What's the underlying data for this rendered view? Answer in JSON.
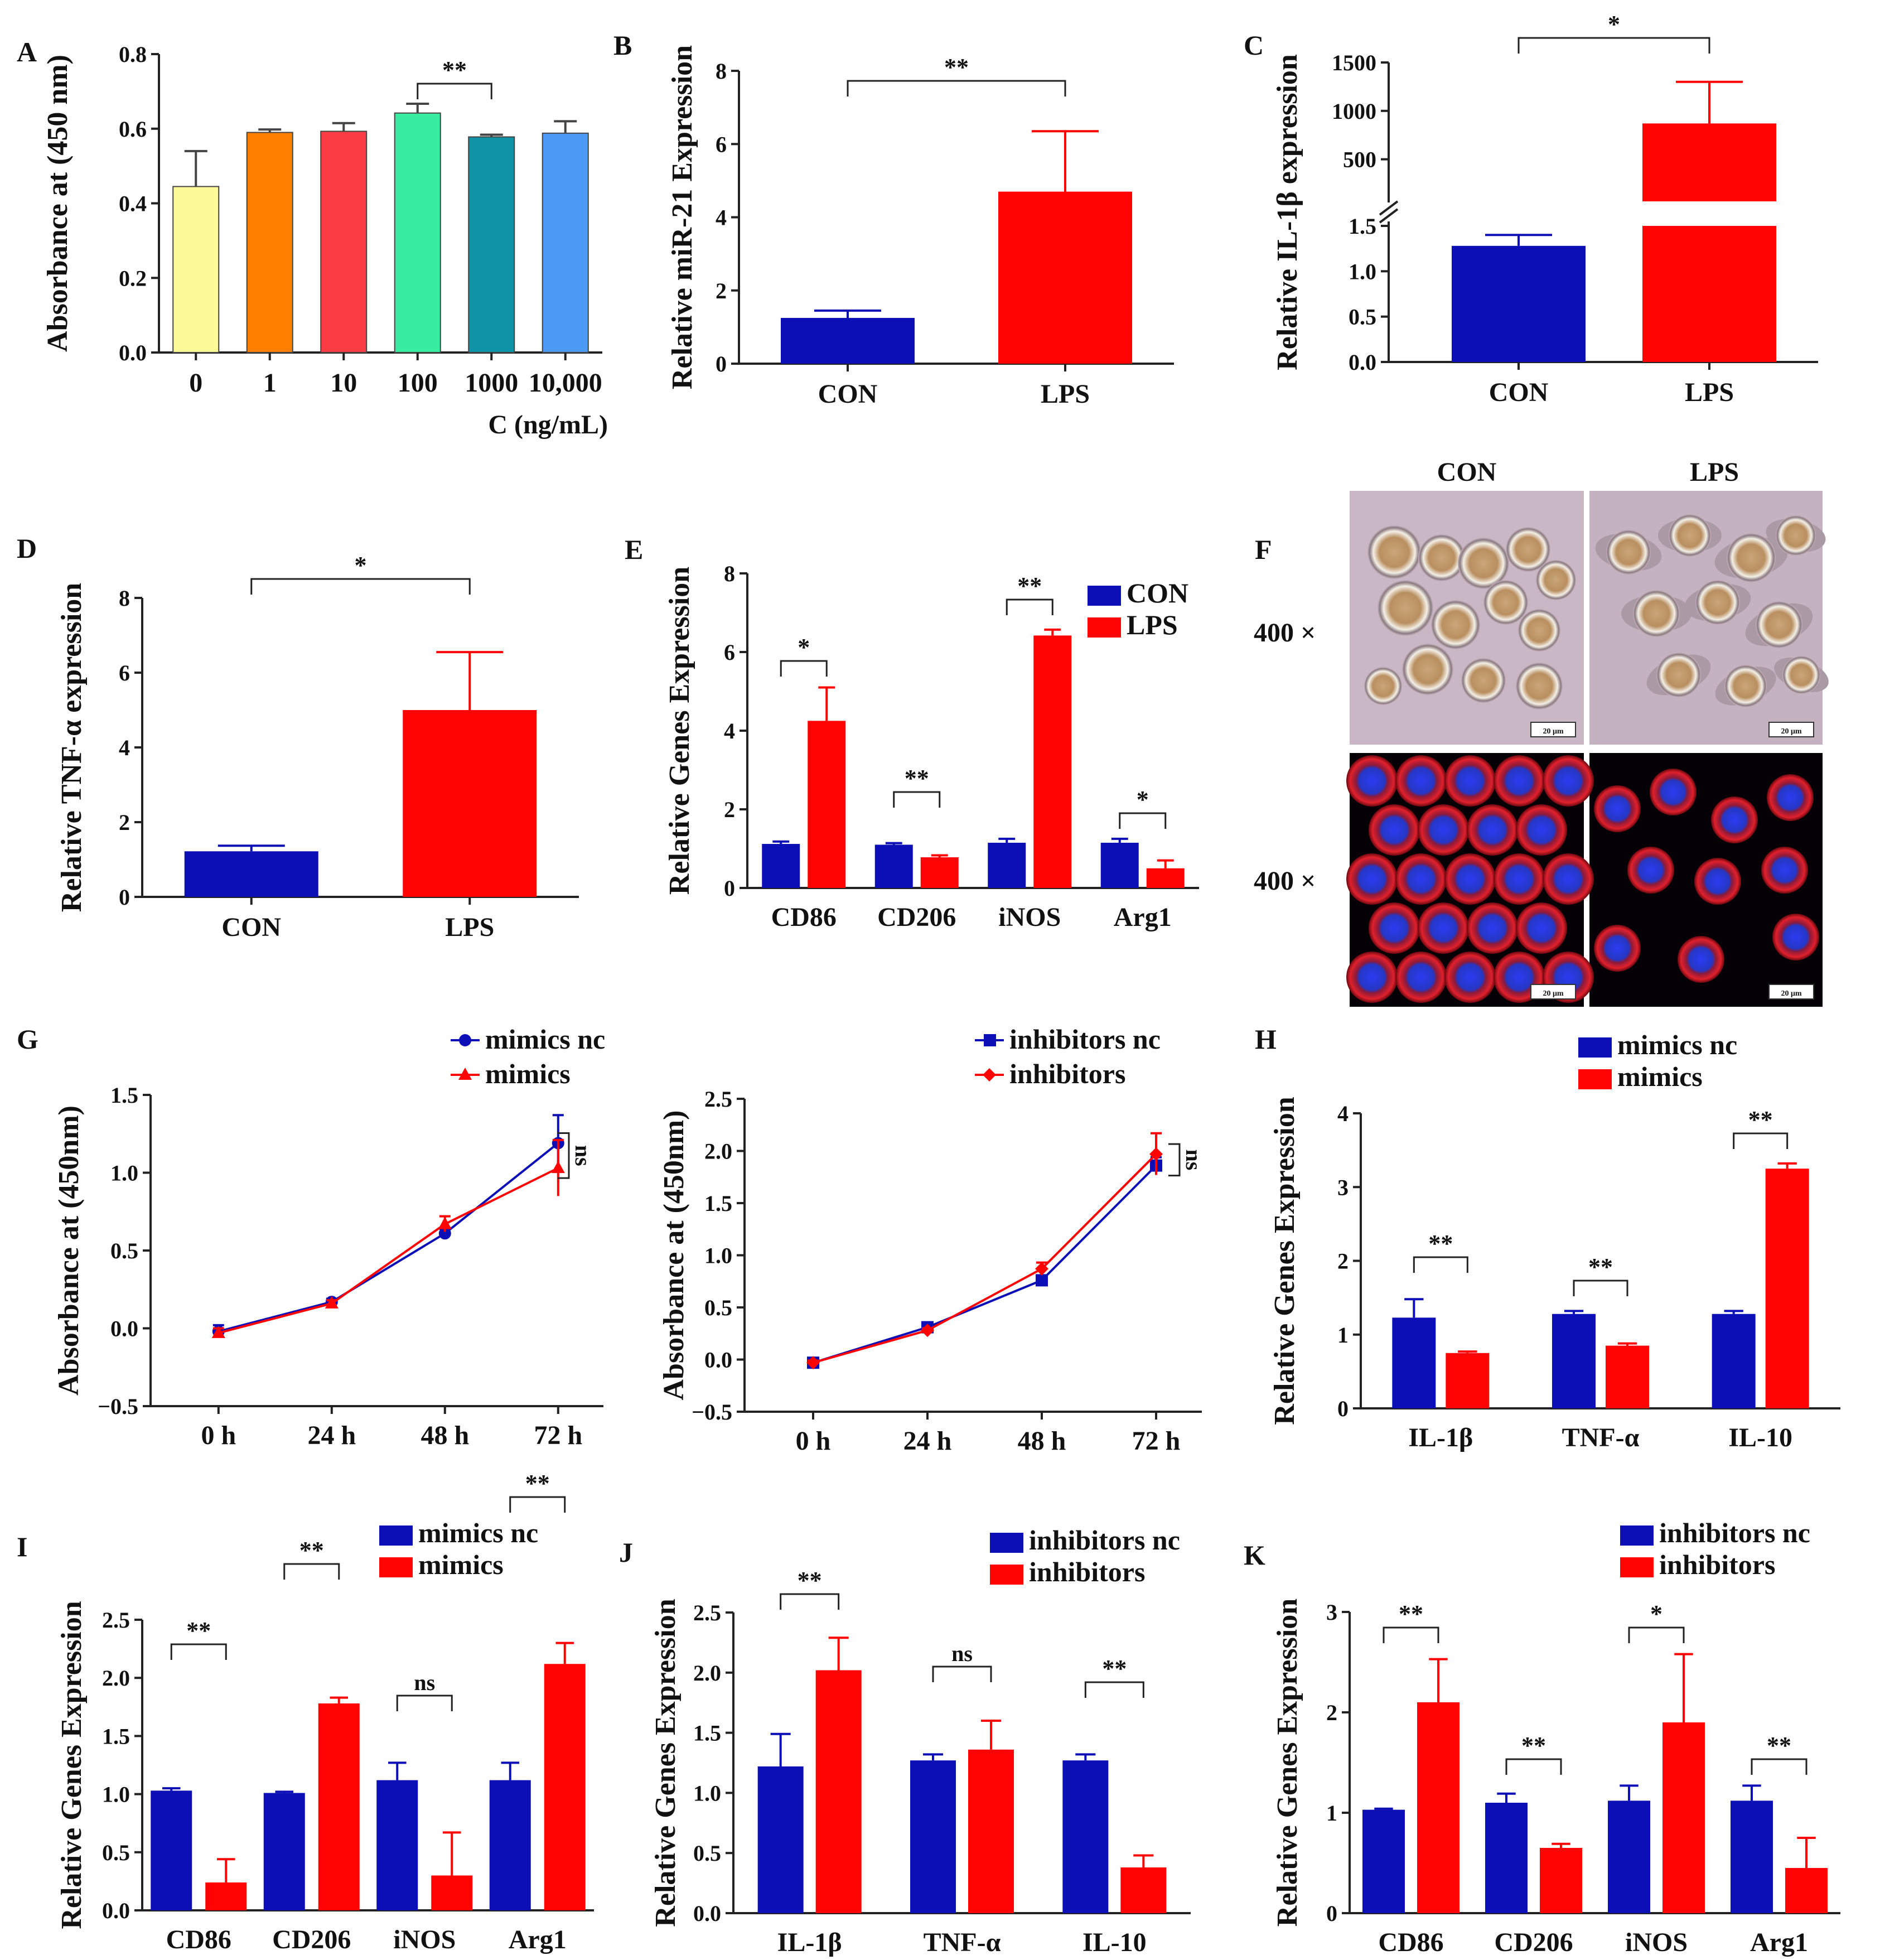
{
  "colors": {
    "blue": "#0b0fb5",
    "red": "#ff0202"
  },
  "chart_data": [
    {
      "id": "A",
      "type": "bar",
      "label": "A",
      "ylabel": "Absorbance at (450 nm)",
      "xlabel": "C (ng/mL)",
      "categories": [
        "0",
        "1",
        "10",
        "100",
        "1000",
        "10,000"
      ],
      "values": [
        0.445,
        0.59,
        0.593,
        0.642,
        0.578,
        0.588
      ],
      "errors": [
        0.095,
        0.008,
        0.022,
        0.025,
        0.006,
        0.032
      ],
      "colors": [
        "#fcfb98",
        "#ff7f00",
        "#fb3c45",
        "#38eda0",
        "#0f93a6",
        "#4b9bf6"
      ],
      "ylim": [
        0,
        0.8
      ],
      "yticks": [
        "0.0",
        "0.2",
        "0.4",
        "0.6",
        "0.8"
      ],
      "sig": [
        {
          "from": 3,
          "to": 4,
          "label": "**"
        }
      ]
    },
    {
      "id": "B",
      "type": "bar",
      "label": "B",
      "ylabel": "Relative miR-21 Expression",
      "categories": [
        "CON",
        "LPS"
      ],
      "values": [
        1.25,
        4.7
      ],
      "errors": [
        0.2,
        1.65
      ],
      "ylim": [
        0,
        8
      ],
      "yticks": [
        "0",
        "2",
        "4",
        "6",
        "8"
      ],
      "sig": [
        {
          "from": 0,
          "to": 1,
          "label": "**"
        }
      ]
    },
    {
      "id": "C",
      "type": "bar",
      "label": "C",
      "ylabel": "Relative IL-1β expression",
      "categories": [
        "CON",
        "LPS"
      ],
      "values": [
        1.28,
        870
      ],
      "errors": [
        0.12,
        430
      ],
      "yticks_lower": [
        "0.0",
        "0.5",
        "1.0",
        "1.5"
      ],
      "yticks_upper": [
        "500",
        "1000",
        "1500"
      ],
      "sig": [
        {
          "from": 0,
          "to": 1,
          "label": "*"
        }
      ]
    },
    {
      "id": "D",
      "type": "bar",
      "label": "D",
      "ylabel": "Relative TNF-α expression",
      "categories": [
        "CON",
        "LPS"
      ],
      "values": [
        1.22,
        5.0
      ],
      "errors": [
        0.15,
        1.55
      ],
      "ylim": [
        0,
        8
      ],
      "yticks": [
        "0",
        "2",
        "4",
        "6",
        "8"
      ],
      "sig": [
        {
          "from": 0,
          "to": 1,
          "label": "*"
        }
      ]
    },
    {
      "id": "E",
      "type": "bar",
      "label": "E",
      "ylabel": "Relative Genes Expression",
      "categories": [
        "CD86",
        "CD206",
        "iNOS",
        "Arg1"
      ],
      "series": [
        {
          "name": "CON",
          "values": [
            1.12,
            1.1,
            1.15,
            1.15
          ],
          "errors": [
            0.06,
            0.04,
            0.1,
            0.1
          ]
        },
        {
          "name": "LPS",
          "values": [
            4.25,
            0.78,
            6.42,
            0.5
          ],
          "errors": [
            0.85,
            0.05,
            0.15,
            0.2
          ]
        }
      ],
      "ylim": [
        0,
        8
      ],
      "yticks": [
        "0",
        "2",
        "4",
        "6",
        "8"
      ],
      "sig": [
        {
          "label": "*"
        },
        {
          "label": "**"
        },
        {
          "label": "**"
        },
        {
          "label": "*"
        }
      ]
    },
    {
      "id": "G1",
      "type": "line",
      "label": "G",
      "ylabel": "Absorbance at (450nm)",
      "x": [
        "0 h",
        "24 h",
        "48 h",
        "72 h"
      ],
      "series": [
        {
          "name": "mimics nc",
          "values": [
            -0.02,
            0.17,
            0.61,
            1.19
          ],
          "errors": [
            0.04,
            0.02,
            0.03,
            0.18
          ]
        },
        {
          "name": "mimics",
          "values": [
            -0.03,
            0.16,
            0.67,
            1.03
          ],
          "errors": [
            0.03,
            0.02,
            0.05,
            0.18
          ]
        }
      ],
      "ylim": [
        -0.5,
        1.5
      ],
      "yticks": [
        "−0.5",
        "0.0",
        "0.5",
        "1.0",
        "1.5"
      ],
      "sig_label": "ns"
    },
    {
      "id": "G2",
      "type": "line",
      "label": "",
      "ylabel": "Absorbance at (450nm)",
      "x": [
        "0 h",
        "24 h",
        "48 h",
        "72 h"
      ],
      "series": [
        {
          "name": "inhibitors nc",
          "values": [
            -0.03,
            0.31,
            0.76,
            1.86
          ],
          "errors": [
            0.03,
            0.03,
            0.04,
            0.08
          ]
        },
        {
          "name": "inhibitors",
          "values": [
            -0.03,
            0.28,
            0.87,
            1.97
          ],
          "errors": [
            0.02,
            0.02,
            0.06,
            0.2
          ]
        }
      ],
      "ylim": [
        -0.5,
        2.5
      ],
      "yticks": [
        "−0.5",
        "0.0",
        "0.5",
        "1.0",
        "1.5",
        "2.0",
        "2.5"
      ],
      "sig_label": "ns"
    },
    {
      "id": "H",
      "type": "bar",
      "label": "H",
      "ylabel": "Relative Genes Expression",
      "categories": [
        "IL-1β",
        "TNF-α",
        "IL-10"
      ],
      "series": [
        {
          "name": "mimics nc",
          "values": [
            1.23,
            1.28,
            1.28
          ],
          "errors": [
            0.25,
            0.04,
            0.04
          ]
        },
        {
          "name": "mimics",
          "values": [
            0.75,
            0.85,
            3.25
          ],
          "errors": [
            0.02,
            0.03,
            0.07
          ]
        }
      ],
      "ylim": [
        0,
        4
      ],
      "yticks": [
        "0",
        "1",
        "2",
        "3",
        "4"
      ],
      "sig": [
        {
          "label": "**"
        },
        {
          "label": "**"
        },
        {
          "label": "**"
        }
      ]
    },
    {
      "id": "I",
      "type": "bar",
      "label": "I",
      "ylabel": "Relative Genes Expression",
      "categories": [
        "CD86",
        "CD206",
        "iNOS",
        "Arg1"
      ],
      "series": [
        {
          "name": "mimics nc",
          "values": [
            1.03,
            1.01,
            1.12,
            1.12
          ],
          "errors": [
            0.02,
            0.01,
            0.15,
            0.15
          ]
        },
        {
          "name": "mimics",
          "values": [
            0.24,
            1.78,
            0.3,
            2.12
          ],
          "errors": [
            0.2,
            0.05,
            0.37,
            0.18
          ]
        }
      ],
      "ylim": [
        0,
        2.5
      ],
      "yticks": [
        "0.0",
        "0.5",
        "1.0",
        "1.5",
        "2.0",
        "2.5"
      ],
      "sig": [
        {
          "label": "**"
        },
        {
          "label": "**"
        },
        {
          "label": "ns"
        },
        {
          "label": "**"
        }
      ]
    },
    {
      "id": "J",
      "type": "bar",
      "label": "J",
      "ylabel": "Relative Genes Expression",
      "categories": [
        "IL-1β",
        "TNF-α",
        "IL-10"
      ],
      "series": [
        {
          "name": "inhibitors nc",
          "values": [
            1.22,
            1.27,
            1.27
          ],
          "errors": [
            0.27,
            0.05,
            0.05
          ]
        },
        {
          "name": "inhibitors",
          "values": [
            2.02,
            1.36,
            0.38
          ],
          "errors": [
            0.27,
            0.24,
            0.1
          ]
        }
      ],
      "ylim": [
        0,
        2.5
      ],
      "yticks": [
        "0.0",
        "0.5",
        "1.0",
        "1.5",
        "2.0",
        "2.5"
      ],
      "sig": [
        {
          "label": "**"
        },
        {
          "label": "ns"
        },
        {
          "label": "**"
        }
      ]
    },
    {
      "id": "K",
      "type": "bar",
      "label": "K",
      "ylabel": "Relative Genes Expression",
      "categories": [
        "CD86",
        "CD206",
        "iNOS",
        "Arg1"
      ],
      "series": [
        {
          "name": "inhibitors nc",
          "values": [
            1.03,
            1.1,
            1.12,
            1.12
          ],
          "errors": [
            0.01,
            0.09,
            0.15,
            0.15
          ]
        },
        {
          "name": "inhibitors",
          "values": [
            2.1,
            0.65,
            1.9,
            0.45
          ],
          "errors": [
            0.43,
            0.04,
            0.68,
            0.3
          ]
        }
      ],
      "ylim": [
        0,
        3
      ],
      "yticks": [
        "0",
        "1",
        "2",
        "3"
      ],
      "sig": [
        {
          "label": "**"
        },
        {
          "label": "**"
        },
        {
          "label": "*"
        },
        {
          "label": "**"
        }
      ]
    }
  ],
  "panel_f": {
    "label": "F",
    "col_labels": [
      "CON",
      "LPS"
    ],
    "row_labels": [
      "400 ×",
      "400 ×"
    ],
    "scale_bar": "20 μm"
  }
}
